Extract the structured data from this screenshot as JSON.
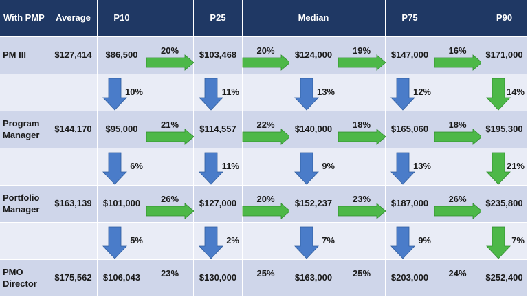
{
  "header": [
    "With PMP",
    "Average",
    "P10",
    "",
    "P25",
    "",
    "Median",
    "",
    "P75",
    "",
    "P90"
  ],
  "rows": [
    {
      "label": "PM III",
      "average": "$127,414",
      "values": [
        "$86,500",
        "$103,468",
        "$124,000",
        "$147,000",
        "$171,000"
      ],
      "changes": [
        "20%",
        "20%",
        "19%",
        "16%"
      ]
    },
    {
      "label": "Program Manager",
      "average": "$144,170",
      "values": [
        "$95,000",
        "$114,557",
        "$140,000",
        "$165,060",
        "$195,300"
      ],
      "changes": [
        "21%",
        "22%",
        "18%",
        "18%"
      ]
    },
    {
      "label": "Portfolio Manager",
      "average": "$163,139",
      "values": [
        "$101,000",
        "$127,000",
        "$152,237",
        "$187,000",
        "$235,800"
      ],
      "changes": [
        "26%",
        "20%",
        "23%",
        "26%"
      ]
    },
    {
      "label": "PMO Director",
      "average": "$175,562",
      "values": [
        "$106,043",
        "$130,000",
        "$163,000",
        "$203,000",
        "$252,400"
      ],
      "changes": [
        "23%",
        "25%",
        "25%",
        "24%"
      ]
    }
  ],
  "vertical_changes": [
    [
      "10%",
      "11%",
      "13%",
      "12%",
      "14%"
    ],
    [
      "6%",
      "11%",
      "9%",
      "13%",
      "21%"
    ],
    [
      "5%",
      "2%",
      "7%",
      "9%",
      "7%"
    ]
  ],
  "colors": {
    "header_bg": "#1f3864",
    "header_text": "#ffffff",
    "row_dark": "#cfd6ea",
    "row_light": "#e9ecf6",
    "arrow_green": "#4db848",
    "arrow_blue": "#4a7cc9"
  },
  "icons": {
    "horizontal_arrow": "right-arrow-icon",
    "vertical_arrow": "down-arrow-icon"
  }
}
